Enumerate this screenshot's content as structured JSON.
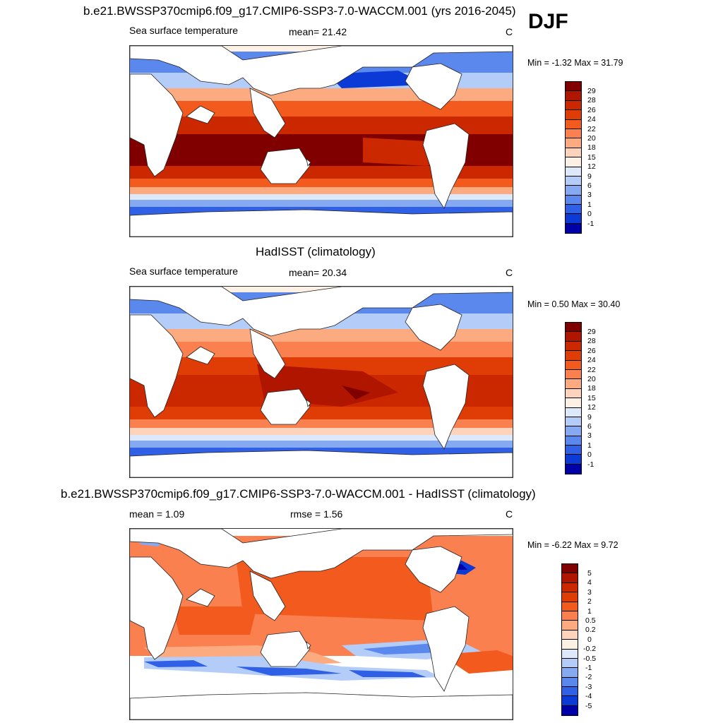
{
  "season": "DJF",
  "panels": [
    {
      "title": "b.e21.BWSSP370cmip6.f09_g17.CMIP6-SSP3-7.0-WACCM.001 (yrs 2016-2045)",
      "left_label": "Sea surface temperature",
      "center_label": "mean=  21.42",
      "units": "C",
      "minmax": "Min =  -1.32 Max =  31.79",
      "palette": "sst"
    },
    {
      "title": "HadISST (climatology)",
      "left_label": "Sea surface temperature",
      "center_label": "mean=  20.34",
      "units": "C",
      "minmax": "Min =   0.50 Max =  30.40",
      "palette": "sst"
    },
    {
      "title": "b.e21.BWSSP370cmip6.f09_g17.CMIP6-SSP3-7.0-WACCM.001 - HadISST (climatology)",
      "left_label": "mean =   1.09",
      "center_label": "rmse =   1.56",
      "units": "C",
      "minmax": "Min =  -6.22 Max =   9.72",
      "palette": "diff"
    }
  ],
  "colorbars": {
    "sst": {
      "labels": [
        "29",
        "28",
        "26",
        "24",
        "22",
        "20",
        "18",
        "15",
        "12",
        "9",
        "6",
        "3",
        "1",
        "0",
        "-1"
      ],
      "colors": [
        "#800000",
        "#b01500",
        "#cc2800",
        "#e03c05",
        "#f25a1e",
        "#fa8050",
        "#fcab80",
        "#fdd3bb",
        "#fdf0e5",
        "#dde9fb",
        "#b4cdf8",
        "#86aaf2",
        "#5a88ec",
        "#2f60e6",
        "#0b3ad6",
        "#0000a8"
      ]
    },
    "diff": {
      "labels": [
        "5",
        "4",
        "3",
        "2",
        "1",
        "0.5",
        "0.2",
        "0",
        "-0.2",
        "-0.5",
        "-1",
        "-2",
        "-3",
        "-4",
        "-5"
      ],
      "colors": [
        "#800000",
        "#b01500",
        "#cc2800",
        "#e03c05",
        "#f25a1e",
        "#fa8050",
        "#fcab80",
        "#fdd3bb",
        "#fdf0e5",
        "#dde9fb",
        "#b4cdf8",
        "#86aaf2",
        "#5a88ec",
        "#2f60e6",
        "#0b3ad6",
        "#0000a8"
      ]
    }
  }
}
